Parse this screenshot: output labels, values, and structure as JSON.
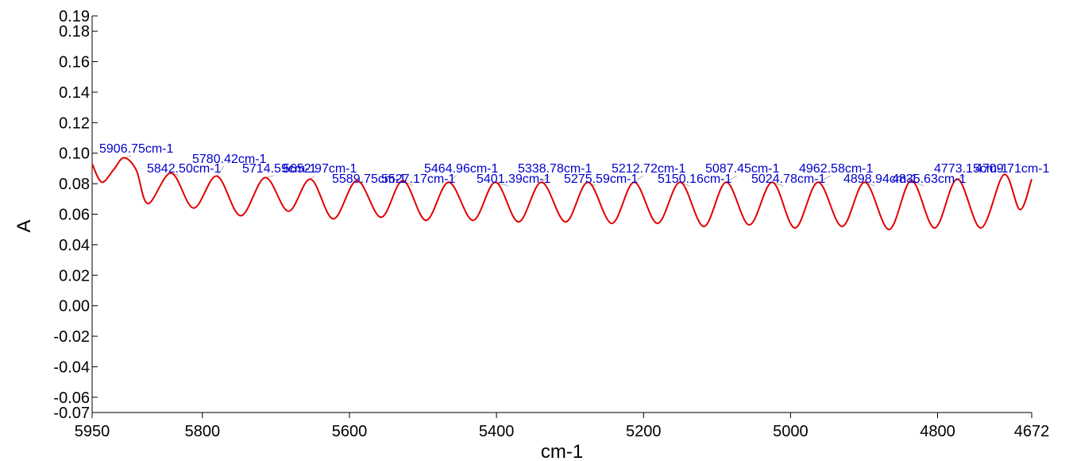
{
  "chart_data": {
    "type": "line",
    "title": "",
    "xlabel": "cm-1",
    "ylabel": "A",
    "xlim": [
      5950,
      4672
    ],
    "x_reversed": true,
    "ylim": [
      -0.07,
      0.19
    ],
    "grid": false,
    "legend": "none",
    "line_color": "#e00000",
    "label_color": "#0000cc",
    "x_ticks": [
      5950,
      5800,
      5600,
      5400,
      5200,
      5000,
      4800,
      4672
    ],
    "x_tick_labels": [
      "5950",
      "5800",
      "5600",
      "5400",
      "5200",
      "5000",
      "4800",
      "4672"
    ],
    "y_ticks": [
      0.19,
      0.18,
      0.16,
      0.14,
      0.12,
      0.1,
      0.08,
      0.06,
      0.04,
      0.02,
      0.0,
      -0.02,
      -0.04,
      -0.06,
      -0.07
    ],
    "y_tick_labels": [
      "0.19",
      "0.18",
      "0.16",
      "0.14",
      "0.12",
      "0.10",
      "0.08",
      "0.06",
      "0.04",
      "0.02",
      "0.00",
      "-0.02",
      "-0.04",
      "-0.06",
      "-0.07"
    ],
    "series": [
      {
        "points": [
          [
            5950,
            0.093
          ],
          [
            5937,
            0.081
          ],
          [
            5921,
            0.089
          ],
          [
            5906.75,
            0.097
          ],
          [
            5890,
            0.089
          ],
          [
            5874,
            0.067
          ],
          [
            5842.5,
            0.087
          ],
          [
            5812,
            0.064
          ],
          [
            5780.42,
            0.085
          ],
          [
            5748,
            0.059
          ],
          [
            5714.59,
            0.084
          ],
          [
            5683,
            0.062
          ],
          [
            5652.97,
            0.083
          ],
          [
            5622,
            0.057
          ],
          [
            5589.75,
            0.082
          ],
          [
            5557,
            0.058
          ],
          [
            5527.17,
            0.082
          ],
          [
            5496,
            0.056
          ],
          [
            5464.96,
            0.081
          ],
          [
            5432,
            0.056
          ],
          [
            5401.39,
            0.081
          ],
          [
            5370,
            0.055
          ],
          [
            5338.78,
            0.081
          ],
          [
            5306,
            0.055
          ],
          [
            5275.59,
            0.081
          ],
          [
            5243,
            0.054
          ],
          [
            5212.72,
            0.081
          ],
          [
            5181,
            0.054
          ],
          [
            5150.16,
            0.081
          ],
          [
            5118,
            0.052
          ],
          [
            5087.45,
            0.081
          ],
          [
            5056,
            0.053
          ],
          [
            5024.78,
            0.081
          ],
          [
            4994,
            0.051
          ],
          [
            4962.58,
            0.081
          ],
          [
            4930,
            0.052
          ],
          [
            4898.94,
            0.081
          ],
          [
            4866,
            0.05
          ],
          [
            4835.63,
            0.082
          ],
          [
            4804,
            0.051
          ],
          [
            4773.15,
            0.083
          ],
          [
            4741,
            0.051
          ],
          [
            4709.71,
            0.086
          ],
          [
            4688,
            0.063
          ],
          [
            4672,
            0.083
          ]
        ]
      }
    ],
    "peak_labels": [
      {
        "x": 5906.75,
        "y": 0.097,
        "text": "5906.75cm-1"
      },
      {
        "x": 5842.5,
        "y": 0.087,
        "text": "5842.50cm-1"
      },
      {
        "x": 5780.42,
        "y": 0.085,
        "text": "5780.42cm-1"
      },
      {
        "x": 5714.59,
        "y": 0.084,
        "text": "5714.59cm-1"
      },
      {
        "x": 5652.97,
        "y": 0.083,
        "text": "5652.97cm-1"
      },
      {
        "x": 5589.75,
        "y": 0.082,
        "text": "5589.75cm-1"
      },
      {
        "x": 5527.17,
        "y": 0.082,
        "text": "5527.17cm-1"
      },
      {
        "x": 5464.96,
        "y": 0.081,
        "text": "5464.96cm-1"
      },
      {
        "x": 5401.39,
        "y": 0.081,
        "text": "5401.39cm-1"
      },
      {
        "x": 5338.78,
        "y": 0.081,
        "text": "5338.78cm-1"
      },
      {
        "x": 5275.59,
        "y": 0.081,
        "text": "5275.59cm-1"
      },
      {
        "x": 5212.72,
        "y": 0.081,
        "text": "5212.72cm-1"
      },
      {
        "x": 5150.16,
        "y": 0.081,
        "text": "5150.16cm-1"
      },
      {
        "x": 5087.45,
        "y": 0.081,
        "text": "5087.45cm-1"
      },
      {
        "x": 5024.78,
        "y": 0.081,
        "text": "5024.78cm-1"
      },
      {
        "x": 4962.58,
        "y": 0.081,
        "text": "4962.58cm-1"
      },
      {
        "x": 4898.94,
        "y": 0.081,
        "text": "4898.94cm-1"
      },
      {
        "x": 4835.63,
        "y": 0.082,
        "text": "4835.63cm-1"
      },
      {
        "x": 4773.15,
        "y": 0.083,
        "text": "4773.15cm-1"
      },
      {
        "x": 4709.71,
        "y": 0.086,
        "text": "4709.71cm-1"
      }
    ]
  }
}
